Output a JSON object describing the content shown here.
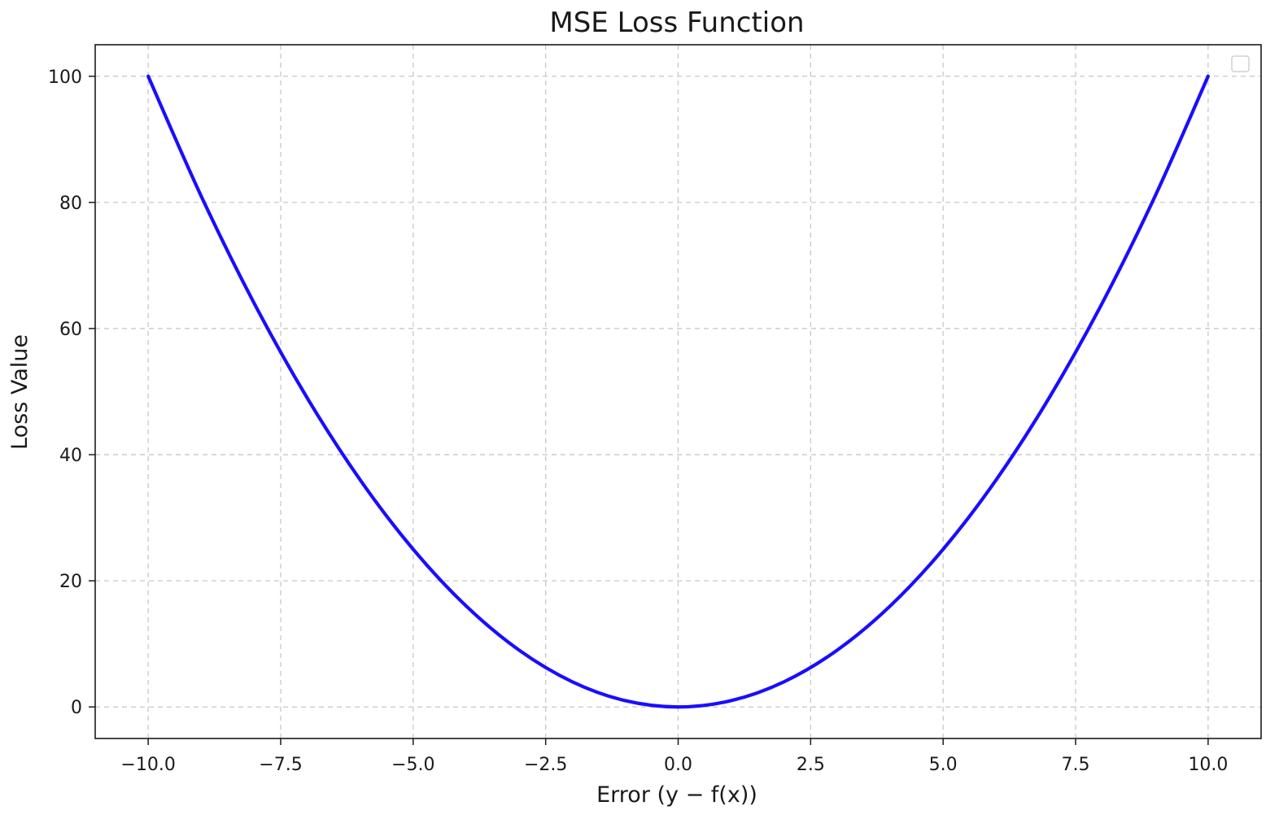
{
  "chart_data": {
    "type": "line",
    "title": "MSE Loss Function",
    "xlabel": "Error (y − f(x))",
    "ylabel": "Loss Value",
    "xlim": [
      -11,
      11
    ],
    "ylim": [
      -5,
      105
    ],
    "x_ticks": [
      -10.0,
      -7.5,
      -5.0,
      -2.5,
      0.0,
      2.5,
      5.0,
      7.5,
      10.0
    ],
    "x_tick_labels": [
      "−10.0",
      "−7.5",
      "−5.0",
      "−2.5",
      "0.0",
      "2.5",
      "5.0",
      "7.5",
      "10.0"
    ],
    "y_ticks": [
      0,
      20,
      40,
      60,
      80,
      100
    ],
    "y_tick_labels": [
      "0",
      "20",
      "40",
      "60",
      "80",
      "100"
    ],
    "grid": true,
    "legend": "upper-right, empty",
    "series": [
      {
        "color": "#1a0dff",
        "x": [
          -10,
          -9,
          -8,
          -7,
          -6,
          -5,
          -4,
          -3,
          -2,
          -1,
          0,
          1,
          2,
          3,
          4,
          5,
          6,
          7,
          8,
          9,
          10
        ],
        "y": [
          100,
          81,
          64,
          49,
          36,
          25,
          16,
          9,
          4,
          1,
          0,
          1,
          4,
          9,
          16,
          25,
          36,
          49,
          64,
          81,
          100
        ]
      }
    ]
  }
}
